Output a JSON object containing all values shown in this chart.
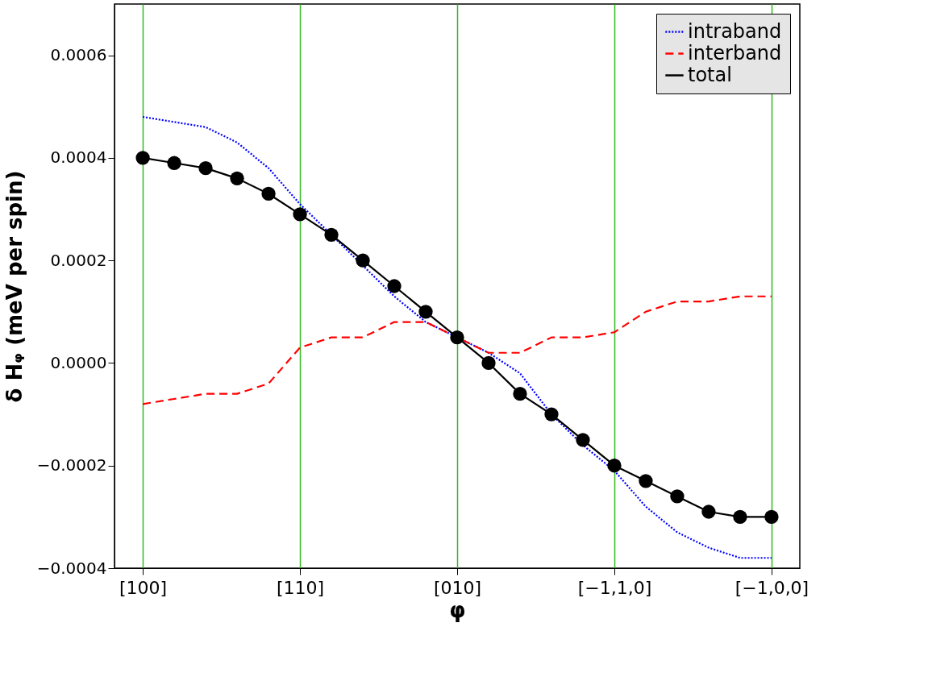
{
  "chart_data": {
    "type": "line",
    "xlabel": "φ",
    "ylabel": "δ Hᵩ (meV per spin)",
    "categories": [
      "[100]",
      null,
      null,
      null,
      null,
      "[110]",
      null,
      null,
      null,
      null,
      "[010]",
      null,
      null,
      null,
      null,
      "[−1,1,0]",
      null,
      null,
      null,
      null,
      "[−1,0,0]"
    ],
    "ylim": [
      -0.0004,
      0.0007
    ],
    "yticks": [
      {
        "value": -0.0004,
        "label": "−0.0004"
      },
      {
        "value": -0.0002,
        "label": "−0.0002"
      },
      {
        "value": 0,
        "label": "0.0000"
      },
      {
        "value": 0.0002,
        "label": "0.0002"
      },
      {
        "value": 0.0004,
        "label": "0.0004"
      },
      {
        "value": 0.0006,
        "label": "0.0006"
      }
    ],
    "grid": "x",
    "legend": "top right",
    "series": [
      {
        "name": "intraband",
        "color": "#0000ff",
        "line_style": "dotted",
        "marker": "none",
        "values": [
          0.00048,
          0.00047,
          0.00046,
          0.00043,
          0.00038,
          0.00031,
          0.00025,
          0.00019,
          0.00013,
          8e-05,
          5e-05,
          2e-05,
          -2e-05,
          -0.0001,
          -0.00016,
          -0.00021,
          -0.00028,
          -0.00033,
          -0.00036,
          -0.00038,
          -0.00038
        ]
      },
      {
        "name": "interband",
        "color": "#ff0000",
        "line_style": "dashed",
        "marker": "none",
        "values": [
          -8e-05,
          -7e-05,
          -6e-05,
          -6e-05,
          -4e-05,
          3e-05,
          5e-05,
          5e-05,
          8e-05,
          8e-05,
          5e-05,
          2e-05,
          2e-05,
          5e-05,
          5e-05,
          6e-05,
          0.0001,
          0.00012,
          0.00012,
          0.00013,
          0.00013
        ]
      },
      {
        "name": "total",
        "color": "#000000",
        "line_style": "solid",
        "marker": "circle",
        "values": [
          0.0004,
          0.00039,
          0.00038,
          0.00036,
          0.00033,
          0.00029,
          0.00025,
          0.0002,
          0.00015,
          0.0001,
          5e-05,
          0.0,
          -6e-05,
          -0.0001,
          -0.00015,
          -0.0002,
          -0.00023,
          -0.00026,
          -0.00029,
          -0.0003,
          -0.0003
        ]
      }
    ]
  }
}
